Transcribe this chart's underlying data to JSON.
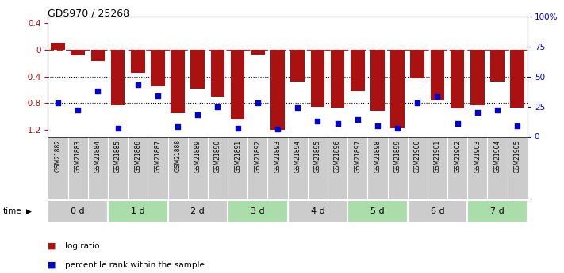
{
  "title": "GDS970 / 25268",
  "samples": [
    "GSM21882",
    "GSM21883",
    "GSM21884",
    "GSM21885",
    "GSM21886",
    "GSM21887",
    "GSM21888",
    "GSM21889",
    "GSM21890",
    "GSM21891",
    "GSM21892",
    "GSM21893",
    "GSM21894",
    "GSM21895",
    "GSM21896",
    "GSM21897",
    "GSM21898",
    "GSM21899",
    "GSM21900",
    "GSM21901",
    "GSM21902",
    "GSM21903",
    "GSM21904",
    "GSM21905"
  ],
  "log_ratio": [
    0.1,
    -0.08,
    -0.17,
    -0.83,
    -0.35,
    -0.55,
    -0.95,
    -0.58,
    -0.7,
    -1.05,
    -0.07,
    -1.2,
    -0.48,
    -0.85,
    -0.87,
    -0.62,
    -0.92,
    -1.18,
    -0.43,
    -0.76,
    -0.88,
    -0.83,
    -0.48,
    -0.87
  ],
  "percentile": [
    28,
    22,
    38,
    7,
    43,
    34,
    8,
    18,
    25,
    7,
    28,
    6,
    24,
    13,
    11,
    14,
    9,
    7,
    28,
    33,
    11,
    20,
    22,
    9
  ],
  "time_groups": [
    {
      "label": "0 d",
      "start": 0,
      "end": 3,
      "color": "#cccccc"
    },
    {
      "label": "1 d",
      "start": 3,
      "end": 6,
      "color": "#aaddaa"
    },
    {
      "label": "2 d",
      "start": 6,
      "end": 9,
      "color": "#cccccc"
    },
    {
      "label": "3 d",
      "start": 9,
      "end": 12,
      "color": "#aaddaa"
    },
    {
      "label": "4 d",
      "start": 12,
      "end": 15,
      "color": "#cccccc"
    },
    {
      "label": "5 d",
      "start": 15,
      "end": 18,
      "color": "#aaddaa"
    },
    {
      "label": "6 d",
      "start": 18,
      "end": 21,
      "color": "#cccccc"
    },
    {
      "label": "7 d",
      "start": 21,
      "end": 24,
      "color": "#aaddaa"
    }
  ],
  "bar_color": "#aa1111",
  "dot_color": "#0000cc",
  "ylim_left": [
    -1.3,
    0.5
  ],
  "ylim_right": [
    0,
    100
  ],
  "yticks_left": [
    -1.2,
    -0.8,
    -0.4,
    0.0,
    0.4
  ],
  "ytick_labels_left": [
    "-1.2",
    "-0.8",
    "-0.4",
    "0",
    "0.4"
  ],
  "yticks_right": [
    0,
    25,
    50,
    75,
    100
  ],
  "ytick_labels_right": [
    "0",
    "25",
    "50",
    "75",
    "100%"
  ],
  "dotted_lines": [
    -0.4,
    -0.8
  ],
  "legend_bar_label": "log ratio",
  "legend_dot_label": "percentile rank within the sample",
  "xlabel_bg": "#cccccc",
  "sample_bg_color": "#cccccc"
}
